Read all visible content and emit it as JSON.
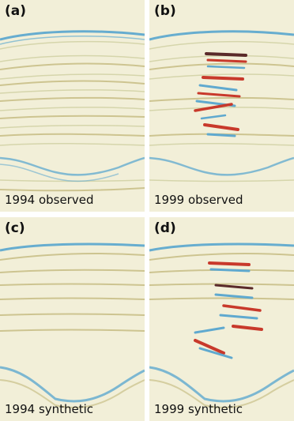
{
  "figure": {
    "panels": [
      {
        "id": "a",
        "label": "(a)",
        "caption": "1994 observed"
      },
      {
        "id": "b",
        "label": "(b)",
        "caption": "1999 observed"
      },
      {
        "id": "c",
        "label": "(c)",
        "caption": "1994 synthetic"
      },
      {
        "id": "d",
        "label": "(d)",
        "caption": "1999 synthetic"
      }
    ],
    "colors": {
      "background": "#f2efd8",
      "blue_reflector": "#5fa9cf",
      "red_anomaly": "#c8392b",
      "dark_anomaly": "#5a2a2a",
      "olive_event": "#c9c089"
    }
  }
}
